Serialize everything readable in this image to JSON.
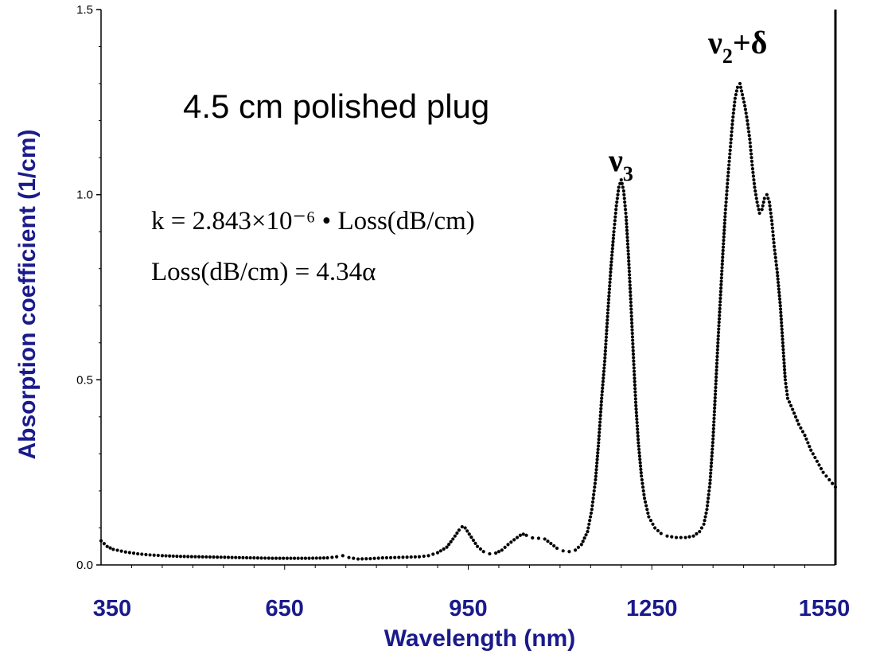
{
  "chart_data": {
    "type": "scatter",
    "title": "4.5 cm polished plug",
    "xlabel": "Wavelength (nm)",
    "ylabel": "Absorption coefficient (1/cm)",
    "xlim": [
      350,
      1550
    ],
    "ylim": [
      0.0,
      1.5
    ],
    "x_ticks": [
      "350",
      "650",
      "950",
      "1250",
      "1550"
    ],
    "y_ticks": [
      "0.0",
      "0.5",
      "1.0",
      "1.5"
    ],
    "annotations": {
      "peak1": {
        "main": "ν",
        "sub": "3",
        "x": 1195
      },
      "peak2": {
        "main": "ν",
        "sub": "2",
        "tail": "+δ",
        "x": 1395
      },
      "formula_line1": "k = 2.843×10⁻⁶ • Loss(dB/cm)",
      "formula_line2": "Loss(dB/cm) = 4.34α"
    },
    "series": [
      {
        "color": "#000000",
        "points": [
          [
            350,
            0.065
          ],
          [
            360,
            0.05
          ],
          [
            370,
            0.042
          ],
          [
            390,
            0.035
          ],
          [
            410,
            0.03
          ],
          [
            430,
            0.027
          ],
          [
            450,
            0.025
          ],
          [
            480,
            0.023
          ],
          [
            510,
            0.022
          ],
          [
            540,
            0.021
          ],
          [
            570,
            0.02
          ],
          [
            600,
            0.019
          ],
          [
            630,
            0.018
          ],
          [
            660,
            0.018
          ],
          [
            690,
            0.018
          ],
          [
            720,
            0.019
          ],
          [
            735,
            0.022
          ],
          [
            745,
            0.025
          ],
          [
            755,
            0.02
          ],
          [
            770,
            0.016
          ],
          [
            790,
            0.017
          ],
          [
            810,
            0.019
          ],
          [
            830,
            0.02
          ],
          [
            850,
            0.021
          ],
          [
            870,
            0.022
          ],
          [
            885,
            0.025
          ],
          [
            900,
            0.033
          ],
          [
            915,
            0.048
          ],
          [
            925,
            0.07
          ],
          [
            935,
            0.094
          ],
          [
            940,
            0.103
          ],
          [
            945,
            0.1
          ],
          [
            955,
            0.075
          ],
          [
            965,
            0.05
          ],
          [
            975,
            0.036
          ],
          [
            985,
            0.03
          ],
          [
            995,
            0.032
          ],
          [
            1005,
            0.04
          ],
          [
            1015,
            0.055
          ],
          [
            1025,
            0.068
          ],
          [
            1035,
            0.08
          ],
          [
            1040,
            0.083
          ],
          [
            1045,
            0.08
          ],
          [
            1055,
            0.073
          ],
          [
            1065,
            0.072
          ],
          [
            1075,
            0.07
          ],
          [
            1085,
            0.058
          ],
          [
            1095,
            0.045
          ],
          [
            1105,
            0.038
          ],
          [
            1115,
            0.036
          ],
          [
            1125,
            0.04
          ],
          [
            1135,
            0.055
          ],
          [
            1145,
            0.09
          ],
          [
            1152,
            0.15
          ],
          [
            1158,
            0.23
          ],
          [
            1163,
            0.33
          ],
          [
            1168,
            0.45
          ],
          [
            1173,
            0.55
          ],
          [
            1178,
            0.68
          ],
          [
            1183,
            0.8
          ],
          [
            1188,
            0.9
          ],
          [
            1192,
            0.97
          ],
          [
            1196,
            1.02
          ],
          [
            1200,
            1.04
          ],
          [
            1204,
            1.01
          ],
          [
            1208,
            0.94
          ],
          [
            1212,
            0.83
          ],
          [
            1216,
            0.7
          ],
          [
            1220,
            0.56
          ],
          [
            1224,
            0.43
          ],
          [
            1228,
            0.33
          ],
          [
            1233,
            0.24
          ],
          [
            1238,
            0.18
          ],
          [
            1245,
            0.13
          ],
          [
            1255,
            0.1
          ],
          [
            1265,
            0.085
          ],
          [
            1275,
            0.078
          ],
          [
            1290,
            0.074
          ],
          [
            1305,
            0.074
          ],
          [
            1318,
            0.078
          ],
          [
            1328,
            0.09
          ],
          [
            1335,
            0.11
          ],
          [
            1340,
            0.15
          ],
          [
            1345,
            0.22
          ],
          [
            1350,
            0.34
          ],
          [
            1354,
            0.47
          ],
          [
            1358,
            0.6
          ],
          [
            1362,
            0.72
          ],
          [
            1366,
            0.84
          ],
          [
            1370,
            0.95
          ],
          [
            1374,
            1.04
          ],
          [
            1378,
            1.12
          ],
          [
            1382,
            1.2
          ],
          [
            1386,
            1.26
          ],
          [
            1390,
            1.29
          ],
          [
            1394,
            1.3
          ],
          [
            1398,
            1.27
          ],
          [
            1402,
            1.24
          ],
          [
            1406,
            1.2
          ],
          [
            1410,
            1.15
          ],
          [
            1414,
            1.08
          ],
          [
            1418,
            1.02
          ],
          [
            1422,
            0.98
          ],
          [
            1426,
            0.95
          ],
          [
            1430,
            0.96
          ],
          [
            1434,
            0.99
          ],
          [
            1438,
            1.0
          ],
          [
            1442,
            0.98
          ],
          [
            1446,
            0.93
          ],
          [
            1450,
            0.86
          ],
          [
            1455,
            0.79
          ],
          [
            1460,
            0.7
          ],
          [
            1464,
            0.6
          ],
          [
            1468,
            0.5
          ],
          [
            1472,
            0.45
          ],
          [
            1480,
            0.42
          ],
          [
            1490,
            0.38
          ],
          [
            1500,
            0.35
          ],
          [
            1510,
            0.31
          ],
          [
            1520,
            0.28
          ],
          [
            1530,
            0.25
          ],
          [
            1540,
            0.23
          ],
          [
            1550,
            0.21
          ]
        ]
      }
    ]
  }
}
